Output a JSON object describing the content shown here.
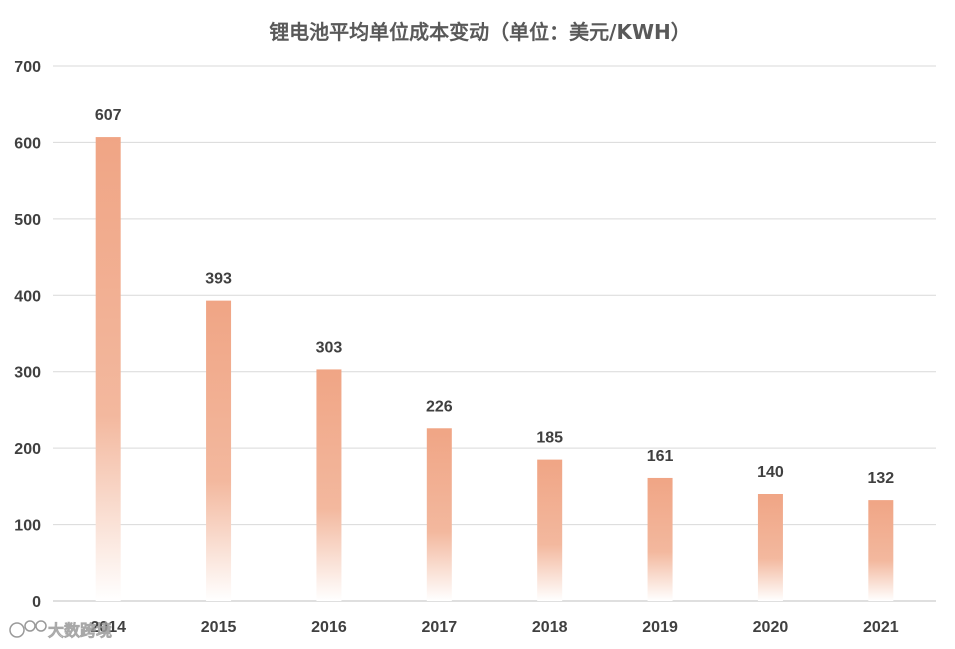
{
  "chart_data": {
    "type": "bar",
    "title": "锂电池平均单位成本变动（单位：美元/KWH）",
    "xlabel": "",
    "ylabel": "",
    "categories": [
      "2014",
      "2015",
      "2016",
      "2017",
      "2018",
      "2019",
      "2020",
      "2021"
    ],
    "values": [
      607,
      393,
      303,
      226,
      185,
      161,
      140,
      132
    ],
    "data_labels": [
      "607",
      "393",
      "303",
      "226",
      "185",
      "161",
      "140",
      "132"
    ],
    "ylim": [
      0,
      700
    ],
    "yticks": [
      0,
      100,
      200,
      300,
      400,
      500,
      600,
      700
    ],
    "ytick_labels": [
      "0",
      "100",
      "200",
      "300",
      "400",
      "500",
      "600",
      "700"
    ],
    "grid": true,
    "legend": "none",
    "bar_color": "#f0a585",
    "bar_fade_color": "#ffffff"
  },
  "watermark": {
    "text": "大数跨境"
  }
}
